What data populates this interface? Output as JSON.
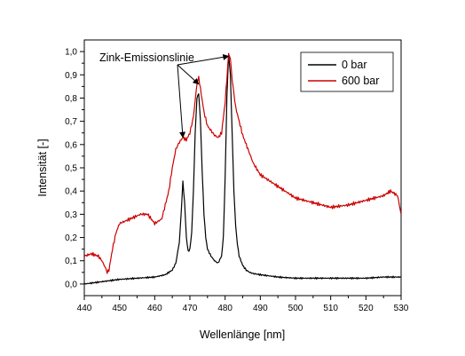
{
  "chart_data": {
    "type": "line",
    "xlabel": "Wellenlänge [nm]",
    "ylabel": "Intensität [-]",
    "xlim": [
      440,
      530
    ],
    "ylim": [
      -0.05,
      1.05
    ],
    "xticks": [
      440,
      450,
      460,
      470,
      480,
      490,
      500,
      510,
      520,
      530
    ],
    "xtick_labels": [
      "440",
      "450",
      "460",
      "470",
      "480",
      "490",
      "500",
      "510",
      "520",
      "530"
    ],
    "yticks": [
      0.0,
      0.1,
      0.2,
      0.3,
      0.4,
      0.5,
      0.6,
      0.7,
      0.8,
      0.9,
      1.0
    ],
    "ytick_labels": [
      "0,0",
      "0,1",
      "0,2",
      "0,3",
      "0,4",
      "0,5",
      "0,6",
      "0,7",
      "0,8",
      "0,9",
      "1,0"
    ],
    "legend_position": "top-right",
    "annotation": {
      "text": "Zink-Emissionslinie",
      "arrow_targets": [
        [
          468,
          0.63
        ],
        [
          472.5,
          0.86
        ],
        [
          481,
          0.98
        ]
      ]
    },
    "series": [
      {
        "name": "0 bar",
        "color": "#000000",
        "x": [
          440,
          445,
          450,
          455,
          460,
          463,
          465,
          466,
          467,
          467.5,
          468,
          468.5,
          469,
          469.5,
          470,
          470.5,
          471,
          471.5,
          472,
          472.5,
          473,
          473.5,
          474,
          474.5,
          475,
          476,
          477,
          478,
          479,
          479.5,
          480,
          480.5,
          481,
          481.5,
          482,
          482.5,
          483,
          483.5,
          484,
          485,
          486,
          487,
          488,
          490,
          495,
          500,
          505,
          510,
          515,
          520,
          525,
          530
        ],
        "y": [
          0.0,
          0.01,
          0.02,
          0.025,
          0.03,
          0.04,
          0.06,
          0.09,
          0.18,
          0.3,
          0.44,
          0.35,
          0.2,
          0.14,
          0.15,
          0.22,
          0.4,
          0.65,
          0.8,
          0.82,
          0.7,
          0.48,
          0.3,
          0.2,
          0.15,
          0.12,
          0.1,
          0.09,
          0.12,
          0.2,
          0.45,
          0.8,
          0.99,
          0.9,
          0.65,
          0.4,
          0.25,
          0.17,
          0.12,
          0.08,
          0.06,
          0.05,
          0.045,
          0.04,
          0.03,
          0.025,
          0.025,
          0.025,
          0.025,
          0.025,
          0.03,
          0.03
        ]
      },
      {
        "name": "600 bar",
        "color": "#cc0000",
        "x": [
          440,
          442,
          444,
          445,
          446,
          446.5,
          447,
          448,
          449,
          450,
          453,
          456,
          458,
          460,
          462,
          464,
          465,
          466,
          467,
          468,
          469,
          470,
          471,
          472,
          472.5,
          473,
          474,
          475,
          476,
          477,
          478,
          479,
          480,
          481,
          481.5,
          482,
          483,
          484,
          485,
          486,
          488,
          490,
          495,
          500,
          505,
          510,
          515,
          520,
          525,
          527,
          529,
          530
        ],
        "y": [
          0.12,
          0.13,
          0.12,
          0.1,
          0.07,
          0.05,
          0.06,
          0.15,
          0.22,
          0.26,
          0.28,
          0.3,
          0.3,
          0.26,
          0.28,
          0.4,
          0.5,
          0.58,
          0.61,
          0.63,
          0.62,
          0.65,
          0.72,
          0.86,
          0.89,
          0.84,
          0.74,
          0.68,
          0.66,
          0.64,
          0.63,
          0.65,
          0.78,
          0.99,
          0.97,
          0.88,
          0.76,
          0.7,
          0.64,
          0.6,
          0.52,
          0.47,
          0.42,
          0.37,
          0.35,
          0.33,
          0.34,
          0.36,
          0.38,
          0.4,
          0.38,
          0.3
        ]
      }
    ]
  }
}
